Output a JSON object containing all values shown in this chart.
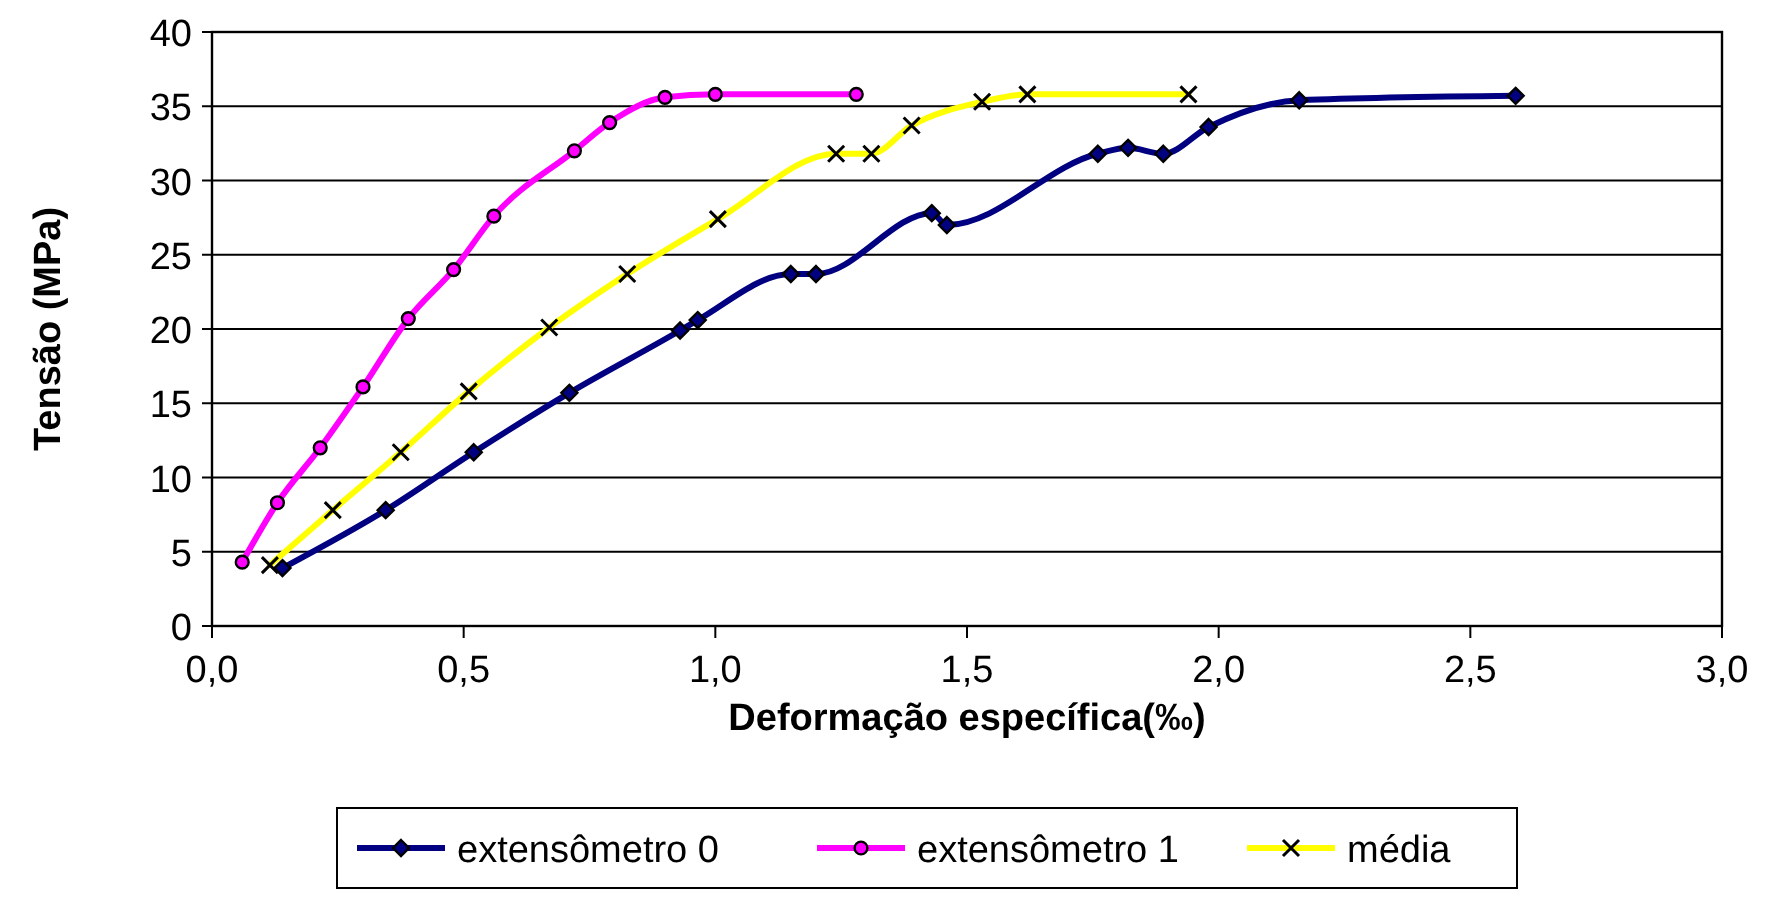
{
  "chart_data": {
    "type": "line",
    "xlabel": "Deformação específica(‰)",
    "ylabel": "Tensão (MPa)",
    "xlim": [
      0,
      3
    ],
    "xticks": [
      {
        "value": 0,
        "label": "0,0"
      },
      {
        "value": 0.5,
        "label": "0,5"
      },
      {
        "value": 1,
        "label": "1,0"
      },
      {
        "value": 1.5,
        "label": "1,5"
      },
      {
        "value": 2,
        "label": "2,0"
      },
      {
        "value": 2.5,
        "label": "2,5"
      },
      {
        "value": 3,
        "label": "3,0"
      }
    ],
    "ylim": [
      0,
      40
    ],
    "yticks": [
      0,
      5,
      10,
      15,
      20,
      25,
      30,
      35,
      40
    ],
    "grid": "y",
    "legend": "bottom",
    "series": [
      {
        "name": "extensômetro 0",
        "color": "#000080",
        "marker": "diamond",
        "x": [
          0.14,
          0.345,
          0.52,
          0.71,
          0.93,
          0.965,
          1.15,
          1.2,
          1.43,
          1.46,
          1.76,
          1.82,
          1.89,
          1.98,
          2.16,
          2.59
        ],
        "values": [
          3.9,
          7.8,
          11.7,
          15.7,
          19.9,
          20.6,
          23.7,
          23.7,
          27.8,
          27,
          31.8,
          32.2,
          31.8,
          33.6,
          35.4,
          35.7
        ]
      },
      {
        "name": "extensômetro 1",
        "color": "#ff00ff",
        "marker": "circle",
        "x": [
          0.06,
          0.13,
          0.215,
          0.3,
          0.39,
          0.48,
          0.56,
          0.72,
          0.79,
          0.9,
          1.0,
          1.28
        ],
        "values": [
          4.3,
          8.3,
          12,
          16.1,
          20.7,
          24,
          27.6,
          32,
          33.9,
          35.6,
          35.8,
          35.8
        ]
      },
      {
        "name": "média",
        "color": "#ffff00",
        "marker": "cross",
        "x": [
          0.115,
          0.24,
          0.375,
          0.51,
          0.67,
          0.825,
          1.005,
          1.24,
          1.31,
          1.39,
          1.53,
          1.62,
          1.94
        ],
        "values": [
          4.1,
          7.8,
          11.7,
          15.8,
          20.1,
          23.7,
          27.4,
          31.8,
          31.8,
          33.7,
          35.3,
          35.8,
          35.8
        ]
      }
    ]
  }
}
